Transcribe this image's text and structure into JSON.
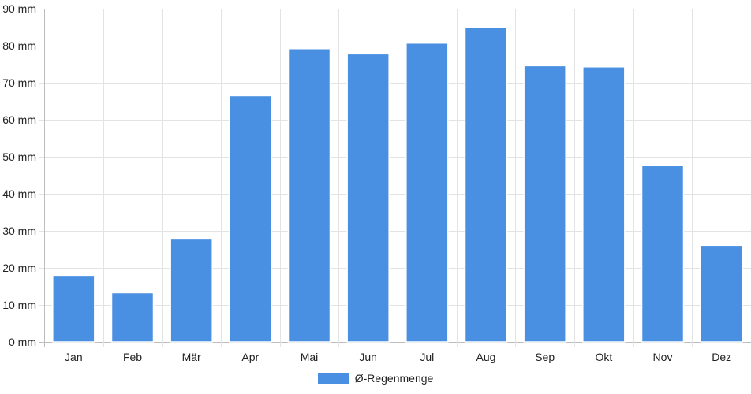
{
  "chart_data": {
    "type": "bar",
    "categories": [
      "Jan",
      "Feb",
      "Mär",
      "Apr",
      "Mai",
      "Jun",
      "Jul",
      "Aug",
      "Sep",
      "Okt",
      "Nov",
      "Dez"
    ],
    "series": [
      {
        "name": "Ø-Regenmenge",
        "values": [
          18,
          13.3,
          28,
          66.5,
          79.2,
          77.8,
          80.7,
          84.9,
          74.6,
          74.3,
          47.6,
          26.1
        ],
        "color": "#4a90e2"
      }
    ],
    "yticks": [
      "0 mm",
      "10 mm",
      "20 mm",
      "30 mm",
      "40 mm",
      "50 mm",
      "60 mm",
      "70 mm",
      "80 mm",
      "90 mm"
    ],
    "ylim": [
      0,
      90
    ],
    "grid": true,
    "legend_position": "bottom"
  }
}
